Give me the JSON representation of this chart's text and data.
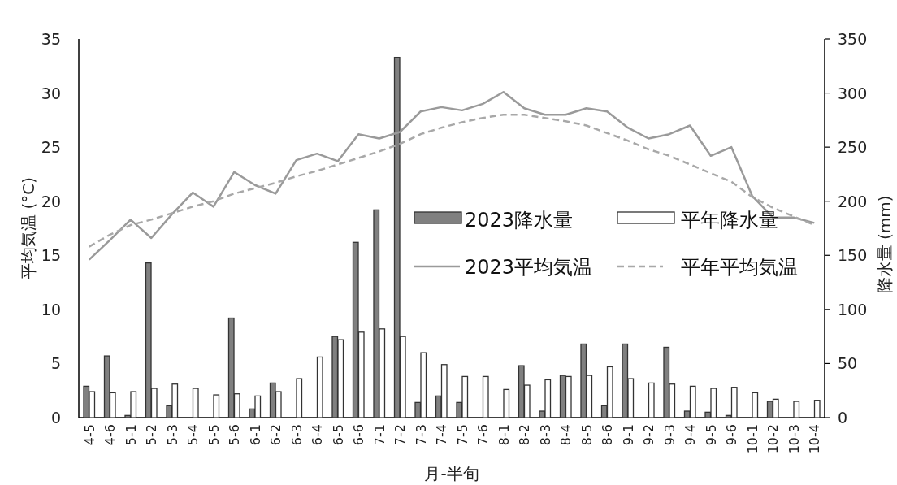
{
  "chart_data": {
    "type": "bar",
    "xlabel": "月-半旬",
    "ylabel": "平均気温 (°C)",
    "y2label": "降水量 (mm)",
    "categories": [
      "4-5",
      "4-6",
      "5-1",
      "5-2",
      "5-3",
      "5-4",
      "5-5",
      "5-6",
      "6-1",
      "6-2",
      "6-3",
      "6-4",
      "6-5",
      "6-6",
      "7-1",
      "7-2",
      "7-3",
      "7-4",
      "7-5",
      "7-6",
      "8-1",
      "8-2",
      "8-3",
      "8-4",
      "8-5",
      "8-6",
      "9-1",
      "9-2",
      "9-3",
      "9-4",
      "9-5",
      "9-6",
      "10-1",
      "10-2",
      "10-3",
      "10-4"
    ],
    "series": [
      {
        "name": "2023降水量",
        "axis": "y2",
        "color": "#808080",
        "values": [
          29,
          57,
          2,
          143,
          11,
          0,
          0,
          92,
          8,
          32,
          0,
          0,
          75,
          162,
          192,
          333,
          14,
          20,
          14,
          0,
          0,
          48,
          6,
          39,
          68,
          11,
          68,
          0,
          65,
          6,
          5,
          2,
          0,
          15,
          0,
          0
        ]
      },
      {
        "name": "平年降水量",
        "axis": "y2",
        "color": "#ffffff",
        "values": [
          24,
          23,
          24,
          27,
          31,
          27,
          21,
          22,
          20,
          24,
          36,
          56,
          72,
          79,
          82,
          75,
          60,
          49,
          38,
          38,
          26,
          30,
          35,
          38,
          39,
          47,
          36,
          32,
          31,
          29,
          27,
          28,
          23,
          17,
          15,
          16
        ]
      },
      {
        "name": "2023平均気温",
        "type": "line",
        "axis": "y",
        "color": "#9a9a9a",
        "line_style": "solid",
        "values": [
          14.6,
          16.4,
          18.3,
          16.6,
          18.8,
          20.8,
          19.5,
          22.7,
          21.5,
          20.7,
          23.8,
          24.4,
          23.7,
          26.2,
          25.8,
          26.4,
          28.3,
          28.7,
          28.4,
          29.0,
          30.1,
          28.6,
          28.0,
          28.0,
          28.6,
          28.3,
          26.8,
          25.8,
          26.2,
          27.0,
          24.2,
          25.0,
          20.5,
          18.5,
          18.5,
          18.0
        ]
      },
      {
        "name": "平年平均気温",
        "type": "line",
        "axis": "y",
        "color": "#a8a8a8",
        "line_style": "dashed",
        "values": [
          15.8,
          16.9,
          17.8,
          18.3,
          18.9,
          19.5,
          20.0,
          20.7,
          21.2,
          21.7,
          22.3,
          22.8,
          23.4,
          24.0,
          24.6,
          25.3,
          26.2,
          26.8,
          27.3,
          27.7,
          28.0,
          28.0,
          27.7,
          27.4,
          27.0,
          26.3,
          25.6,
          24.8,
          24.2,
          23.4,
          22.6,
          21.8,
          20.4,
          19.4,
          18.6,
          17.8
        ]
      }
    ],
    "ylim": [
      0,
      35
    ],
    "yticks": [
      0,
      5,
      10,
      15,
      20,
      25,
      30,
      35
    ],
    "y2lim": [
      0,
      350
    ],
    "y2ticks": [
      0,
      50,
      100,
      150,
      200,
      250,
      300,
      350
    ],
    "legend": "right"
  }
}
